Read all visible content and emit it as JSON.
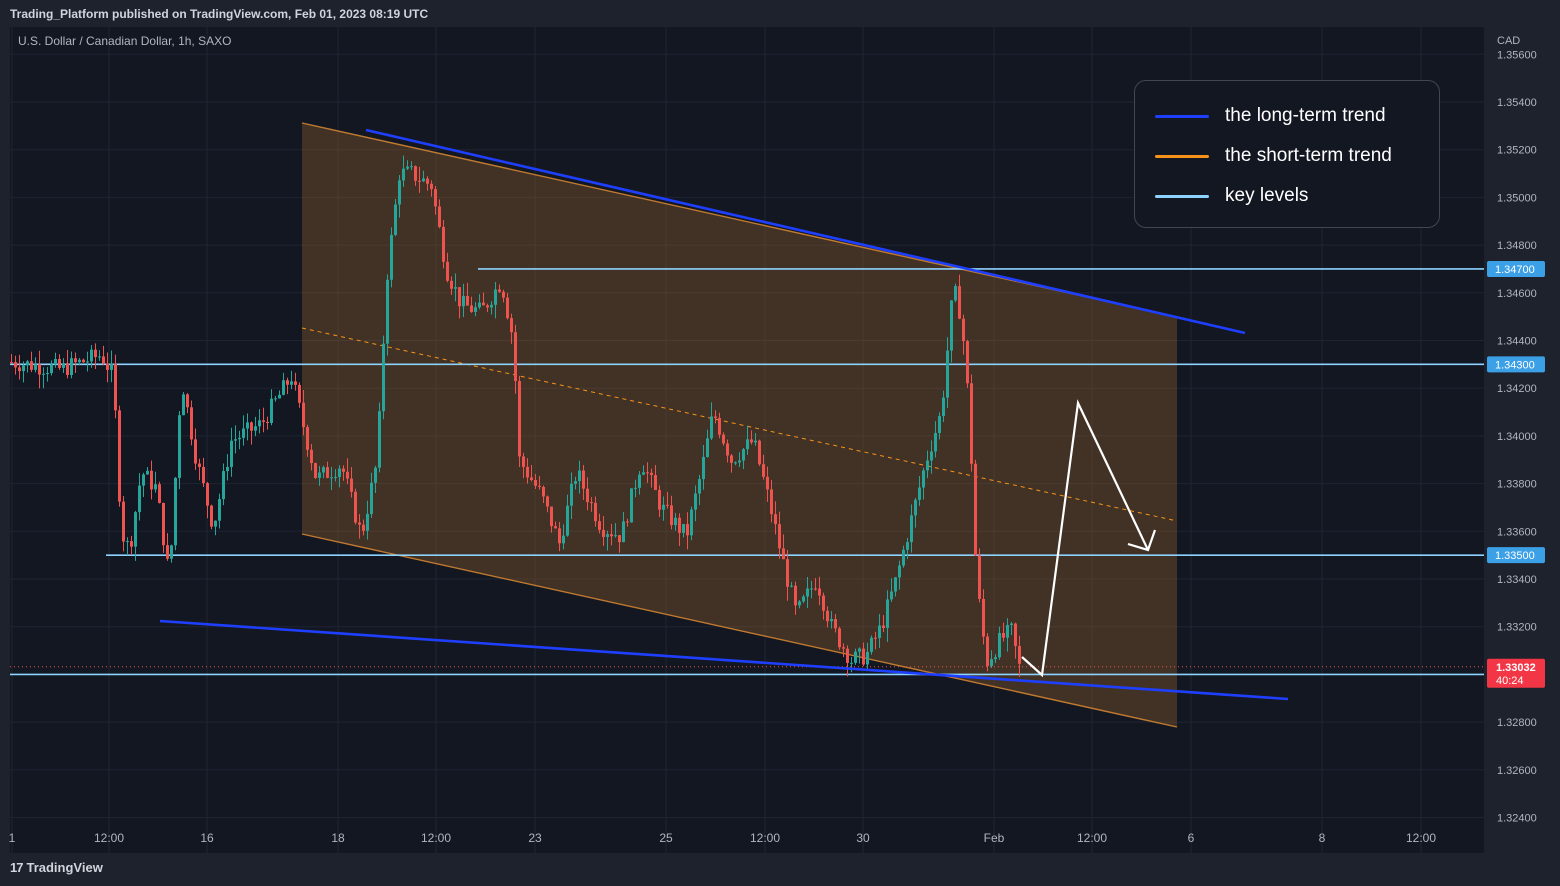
{
  "header": {
    "published": "Trading_Platform published on TradingView.com, Feb 01, 2023 08:19 UTC"
  },
  "symbol": {
    "title": "U.S. Dollar / Canadian Dollar, 1h, SAXO"
  },
  "footer": {
    "brand": "TradingView"
  },
  "legend": {
    "items": [
      {
        "label": "the long-term trend",
        "color": "#1f3fff"
      },
      {
        "label": "the short-term trend",
        "color": "#f7931a"
      },
      {
        "label": "key levels",
        "color": "#8ed3ff"
      }
    ]
  },
  "chart_data": {
    "type": "candlestick",
    "title": "U.S. Dollar / Canadian Dollar, 1h, SAXO",
    "y_unit": "CAD",
    "ylim": [
      1.323,
      1.3565
    ],
    "y_ticks": [
      "1.35600",
      "1.35400",
      "1.35200",
      "1.35000",
      "1.34800",
      "1.34600",
      "1.34400",
      "1.34200",
      "1.34000",
      "1.33800",
      "1.33600",
      "1.33400",
      "1.33200",
      "1.32800",
      "1.32600",
      "1.32400"
    ],
    "x_ticks": [
      "1",
      "12:00",
      "16",
      "18",
      "12:00",
      "23",
      "25",
      "12:00",
      "30",
      "Feb",
      "12:00",
      "6",
      "8",
      "12:00"
    ],
    "key_levels": [
      "1.34700",
      "1.34300",
      "1.33500",
      "1.33000"
    ],
    "current_price": {
      "value": "1.33032",
      "countdown": "40:24"
    },
    "colors": {
      "up": "#26a69a",
      "down": "#ef5350",
      "level": "#8ed3ff",
      "long_trend": "#1f3fff",
      "short_trend": "#f7931a"
    }
  }
}
